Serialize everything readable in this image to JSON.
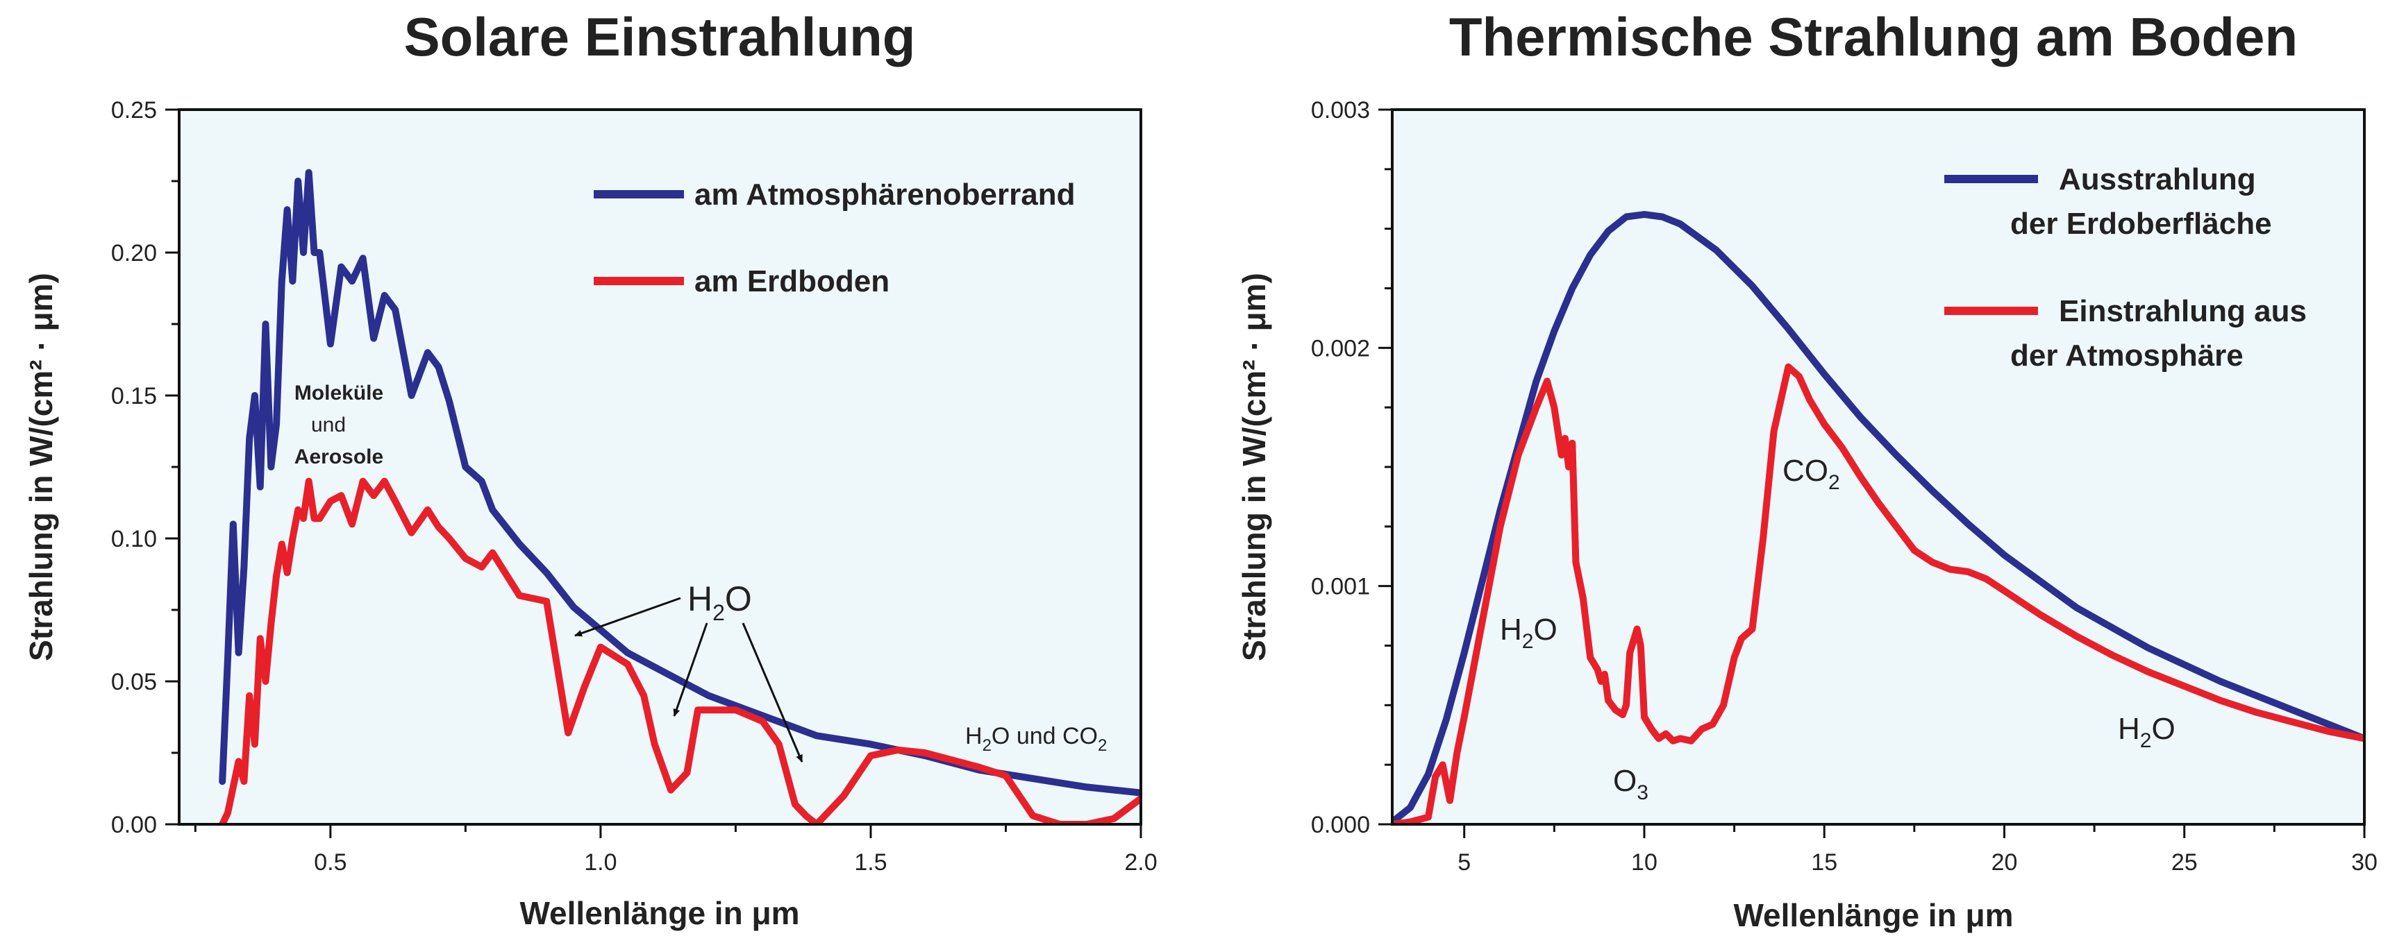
{
  "chart_data": [
    {
      "type": "line",
      "title": "Solare Einstrahlung",
      "xlabel": "Wellenlänge in μm",
      "ylabel": "Strahlung in W/(cm² · μm)",
      "xlim": [
        0.22,
        2.0
      ],
      "ylim": [
        0,
        0.25
      ],
      "xticks": [
        0.5,
        1.0,
        1.5,
        2.0
      ],
      "xtick_labels": [
        "0.5",
        "1.0",
        "1.5",
        "2.0"
      ],
      "yticks": [
        0,
        0.05,
        0.1,
        0.15,
        0.2,
        0.25
      ],
      "ytick_labels": [
        "0.00",
        "0.05",
        "0.10",
        "0.15",
        "0.20",
        "0.25"
      ],
      "grid": false,
      "background": "#eef8fb",
      "legend_position": "top-right",
      "series": [
        {
          "name": "am Atmosphärenoberrand",
          "color": "#2b2f8f",
          "x": [
            0.3,
            0.31,
            0.32,
            0.33,
            0.34,
            0.35,
            0.36,
            0.37,
            0.38,
            0.39,
            0.4,
            0.41,
            0.42,
            0.43,
            0.44,
            0.45,
            0.46,
            0.47,
            0.48,
            0.5,
            0.52,
            0.54,
            0.56,
            0.58,
            0.6,
            0.62,
            0.65,
            0.68,
            0.7,
            0.72,
            0.75,
            0.78,
            0.8,
            0.85,
            0.9,
            0.95,
            1.0,
            1.05,
            1.1,
            1.2,
            1.3,
            1.4,
            1.5,
            1.6,
            1.7,
            1.8,
            1.9,
            2.0
          ],
          "y": [
            0.015,
            0.058,
            0.105,
            0.06,
            0.09,
            0.135,
            0.15,
            0.118,
            0.175,
            0.125,
            0.14,
            0.19,
            0.215,
            0.19,
            0.225,
            0.2,
            0.228,
            0.2,
            0.2,
            0.168,
            0.195,
            0.19,
            0.198,
            0.17,
            0.185,
            0.18,
            0.15,
            0.165,
            0.16,
            0.148,
            0.125,
            0.12,
            0.11,
            0.098,
            0.088,
            0.076,
            0.068,
            0.06,
            0.055,
            0.045,
            0.038,
            0.031,
            0.028,
            0.024,
            0.019,
            0.016,
            0.013,
            0.011
          ]
        },
        {
          "name": "am Erdboden",
          "color": "#e8202a",
          "x": [
            0.3,
            0.31,
            0.32,
            0.33,
            0.34,
            0.35,
            0.36,
            0.37,
            0.38,
            0.39,
            0.4,
            0.41,
            0.42,
            0.43,
            0.44,
            0.45,
            0.46,
            0.47,
            0.48,
            0.5,
            0.52,
            0.54,
            0.56,
            0.58,
            0.6,
            0.62,
            0.65,
            0.68,
            0.7,
            0.72,
            0.75,
            0.78,
            0.8,
            0.85,
            0.9,
            0.94,
            0.97,
            1.0,
            1.05,
            1.08,
            1.1,
            1.13,
            1.16,
            1.18,
            1.2,
            1.25,
            1.3,
            1.33,
            1.36,
            1.38,
            1.4,
            1.45,
            1.5,
            1.55,
            1.6,
            1.7,
            1.75,
            1.8,
            1.85,
            1.9,
            1.95,
            2.0
          ],
          "y": [
            0.0,
            0.004,
            0.013,
            0.022,
            0.015,
            0.045,
            0.028,
            0.065,
            0.05,
            0.07,
            0.087,
            0.098,
            0.088,
            0.1,
            0.11,
            0.107,
            0.12,
            0.107,
            0.107,
            0.113,
            0.115,
            0.105,
            0.12,
            0.115,
            0.12,
            0.113,
            0.102,
            0.11,
            0.104,
            0.1,
            0.093,
            0.09,
            0.095,
            0.08,
            0.078,
            0.032,
            0.048,
            0.062,
            0.056,
            0.045,
            0.028,
            0.012,
            0.018,
            0.04,
            0.04,
            0.04,
            0.036,
            0.028,
            0.007,
            0.003,
            0.0,
            0.01,
            0.024,
            0.026,
            0.025,
            0.02,
            0.017,
            0.003,
            0.0,
            0.0,
            0.002,
            0.009
          ]
        }
      ],
      "annotations": {
        "molekuele_line1": "Moleküle",
        "molekuele_line2": "und",
        "molekuele_line3": "Aerosole",
        "h2o_main": "H",
        "h2o_main_sub": "2",
        "h2o_main_end": "O",
        "h2o_co2": "H",
        "h2o_co2_sub": "2",
        "h2o_co2_mid": "O und CO",
        "h2o_co2_sub2": "2"
      }
    },
    {
      "type": "line",
      "title": "Thermische Strahlung am Boden",
      "xlabel": "Wellenlänge in μm",
      "ylabel": "Strahlung in W/(cm² · μm)",
      "xlim": [
        3,
        30
      ],
      "ylim": [
        0,
        0.003
      ],
      "xticks": [
        5,
        10,
        15,
        20,
        25,
        30
      ],
      "xtick_labels": [
        "5",
        "10",
        "15",
        "20",
        "25",
        "30"
      ],
      "yticks": [
        0,
        0.001,
        0.002,
        0.003
      ],
      "ytick_labels": [
        "0.000",
        "0.001",
        "0.002",
        "0.003"
      ],
      "grid": false,
      "background": "#eef8fb",
      "legend_position": "top-right",
      "series": [
        {
          "name": "Ausstrahlung der Erdoberfläche",
          "name_line1": "Ausstrahlung",
          "name_line2": "der Erdoberfläche",
          "color": "#2b2f8f",
          "x": [
            3.0,
            3.5,
            4.0,
            4.5,
            5.0,
            5.5,
            6.0,
            6.5,
            7.0,
            7.5,
            8.0,
            8.5,
            9.0,
            9.5,
            10.0,
            10.5,
            11.0,
            12.0,
            13.0,
            14.0,
            15.0,
            16.0,
            17.0,
            18.0,
            19.0,
            20.0,
            22.0,
            24.0,
            26.0,
            28.0,
            30.0
          ],
          "y": [
            1e-05,
            7e-05,
            0.00021,
            0.00044,
            0.00072,
            0.00102,
            0.00132,
            0.00159,
            0.00186,
            0.00207,
            0.00225,
            0.00239,
            0.00249,
            0.00255,
            0.00256,
            0.00255,
            0.00252,
            0.00241,
            0.00226,
            0.00208,
            0.00189,
            0.00171,
            0.00155,
            0.0014,
            0.00126,
            0.00113,
            0.00091,
            0.00074,
            0.0006,
            0.00048,
            0.00036
          ]
        },
        {
          "name": "Einstrahlung aus der Atmosphäre",
          "name_line1": "Einstrahlung aus",
          "name_line2": "der Atmosphäre",
          "color": "#e8202a",
          "x": [
            3.0,
            3.5,
            4.0,
            4.2,
            4.4,
            4.6,
            4.8,
            5.0,
            5.5,
            6.0,
            6.5,
            7.0,
            7.3,
            7.5,
            7.7,
            7.8,
            7.9,
            8.0,
            8.1,
            8.3,
            8.5,
            8.7,
            8.8,
            8.9,
            9.0,
            9.2,
            9.4,
            9.5,
            9.6,
            9.8,
            9.9,
            10.0,
            10.2,
            10.4,
            10.6,
            10.8,
            11.0,
            11.3,
            11.6,
            11.9,
            12.2,
            12.5,
            12.7,
            13.0,
            13.3,
            13.6,
            14.0,
            14.3,
            14.6,
            15.0,
            15.5,
            16.0,
            16.5,
            17.0,
            17.5,
            18.0,
            18.5,
            19.0,
            19.5,
            20.0,
            21.0,
            22.0,
            23.0,
            24.0,
            25.0,
            26.0,
            27.0,
            28.0,
            29.0,
            30.0
          ],
          "y": [
            0.0,
            1e-05,
            3e-05,
            0.0002,
            0.00025,
            0.0001,
            0.0003,
            0.00045,
            0.00085,
            0.00125,
            0.00155,
            0.00175,
            0.00186,
            0.00175,
            0.00155,
            0.00162,
            0.0015,
            0.0016,
            0.0011,
            0.00095,
            0.0007,
            0.00065,
            0.0006,
            0.00063,
            0.00052,
            0.00048,
            0.00046,
            0.0005,
            0.00072,
            0.00082,
            0.00075,
            0.00045,
            0.0004,
            0.00036,
            0.00038,
            0.00035,
            0.00036,
            0.00035,
            0.0004,
            0.00042,
            0.0005,
            0.0007,
            0.00078,
            0.00082,
            0.0012,
            0.00165,
            0.00192,
            0.00188,
            0.00178,
            0.00168,
            0.00158,
            0.00146,
            0.00135,
            0.00125,
            0.00115,
            0.0011,
            0.00107,
            0.00106,
            0.00103,
            0.00098,
            0.00088,
            0.00079,
            0.00071,
            0.00064,
            0.00058,
            0.00052,
            0.00047,
            0.00043,
            0.00039,
            0.00036
          ]
        }
      ],
      "annotations": {
        "h2o_left": "H",
        "h2o_left_sub": "2",
        "h2o_left_end": "O",
        "o3": "O",
        "o3_sub": "3",
        "co2": "CO",
        "co2_sub": "2",
        "h2o_right": "H",
        "h2o_right_sub": "2",
        "h2o_right_end": "O"
      }
    }
  ]
}
